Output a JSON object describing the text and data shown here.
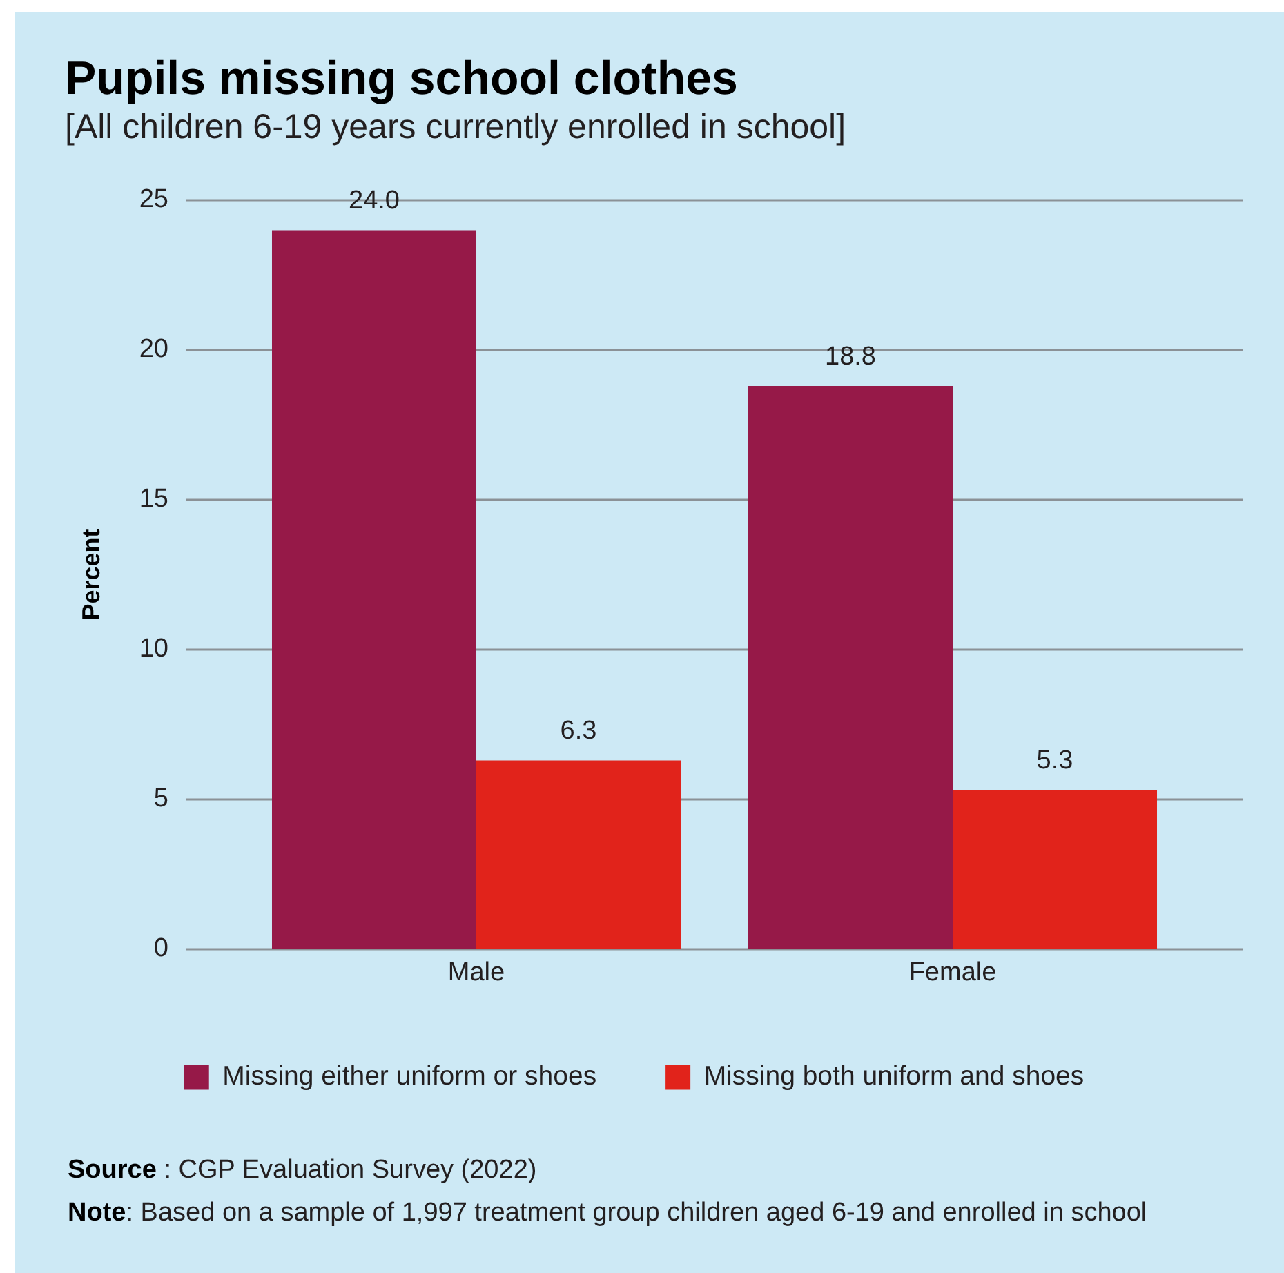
{
  "chart_data": {
    "type": "bar",
    "title": "Pupils missing school clothes",
    "subtitle": "[All children 6-19 years currently enrolled in school]",
    "ylabel": "Percent",
    "categories": [
      "Male",
      "Female"
    ],
    "series": [
      {
        "name": "Missing either uniform or shoes",
        "color": "#961948",
        "values": [
          24.0,
          18.8
        ],
        "value_labels": [
          "24.0",
          "18.8"
        ]
      },
      {
        "name": "Missing both uniform and shoes",
        "color": "#e1231b",
        "values": [
          6.3,
          5.3
        ],
        "value_labels": [
          "6.3",
          "5.3"
        ]
      }
    ],
    "ylim": [
      0,
      25
    ],
    "yticks": [
      0,
      5,
      10,
      15,
      20,
      25
    ],
    "grid": "y",
    "legend": "bottom",
    "annotations": [
      "Source : CGP Evaluation Survey (2022)",
      "Note: Based on a sample of 1,997 treatment group children aged 6-19 and enrolled in school"
    ]
  }
}
